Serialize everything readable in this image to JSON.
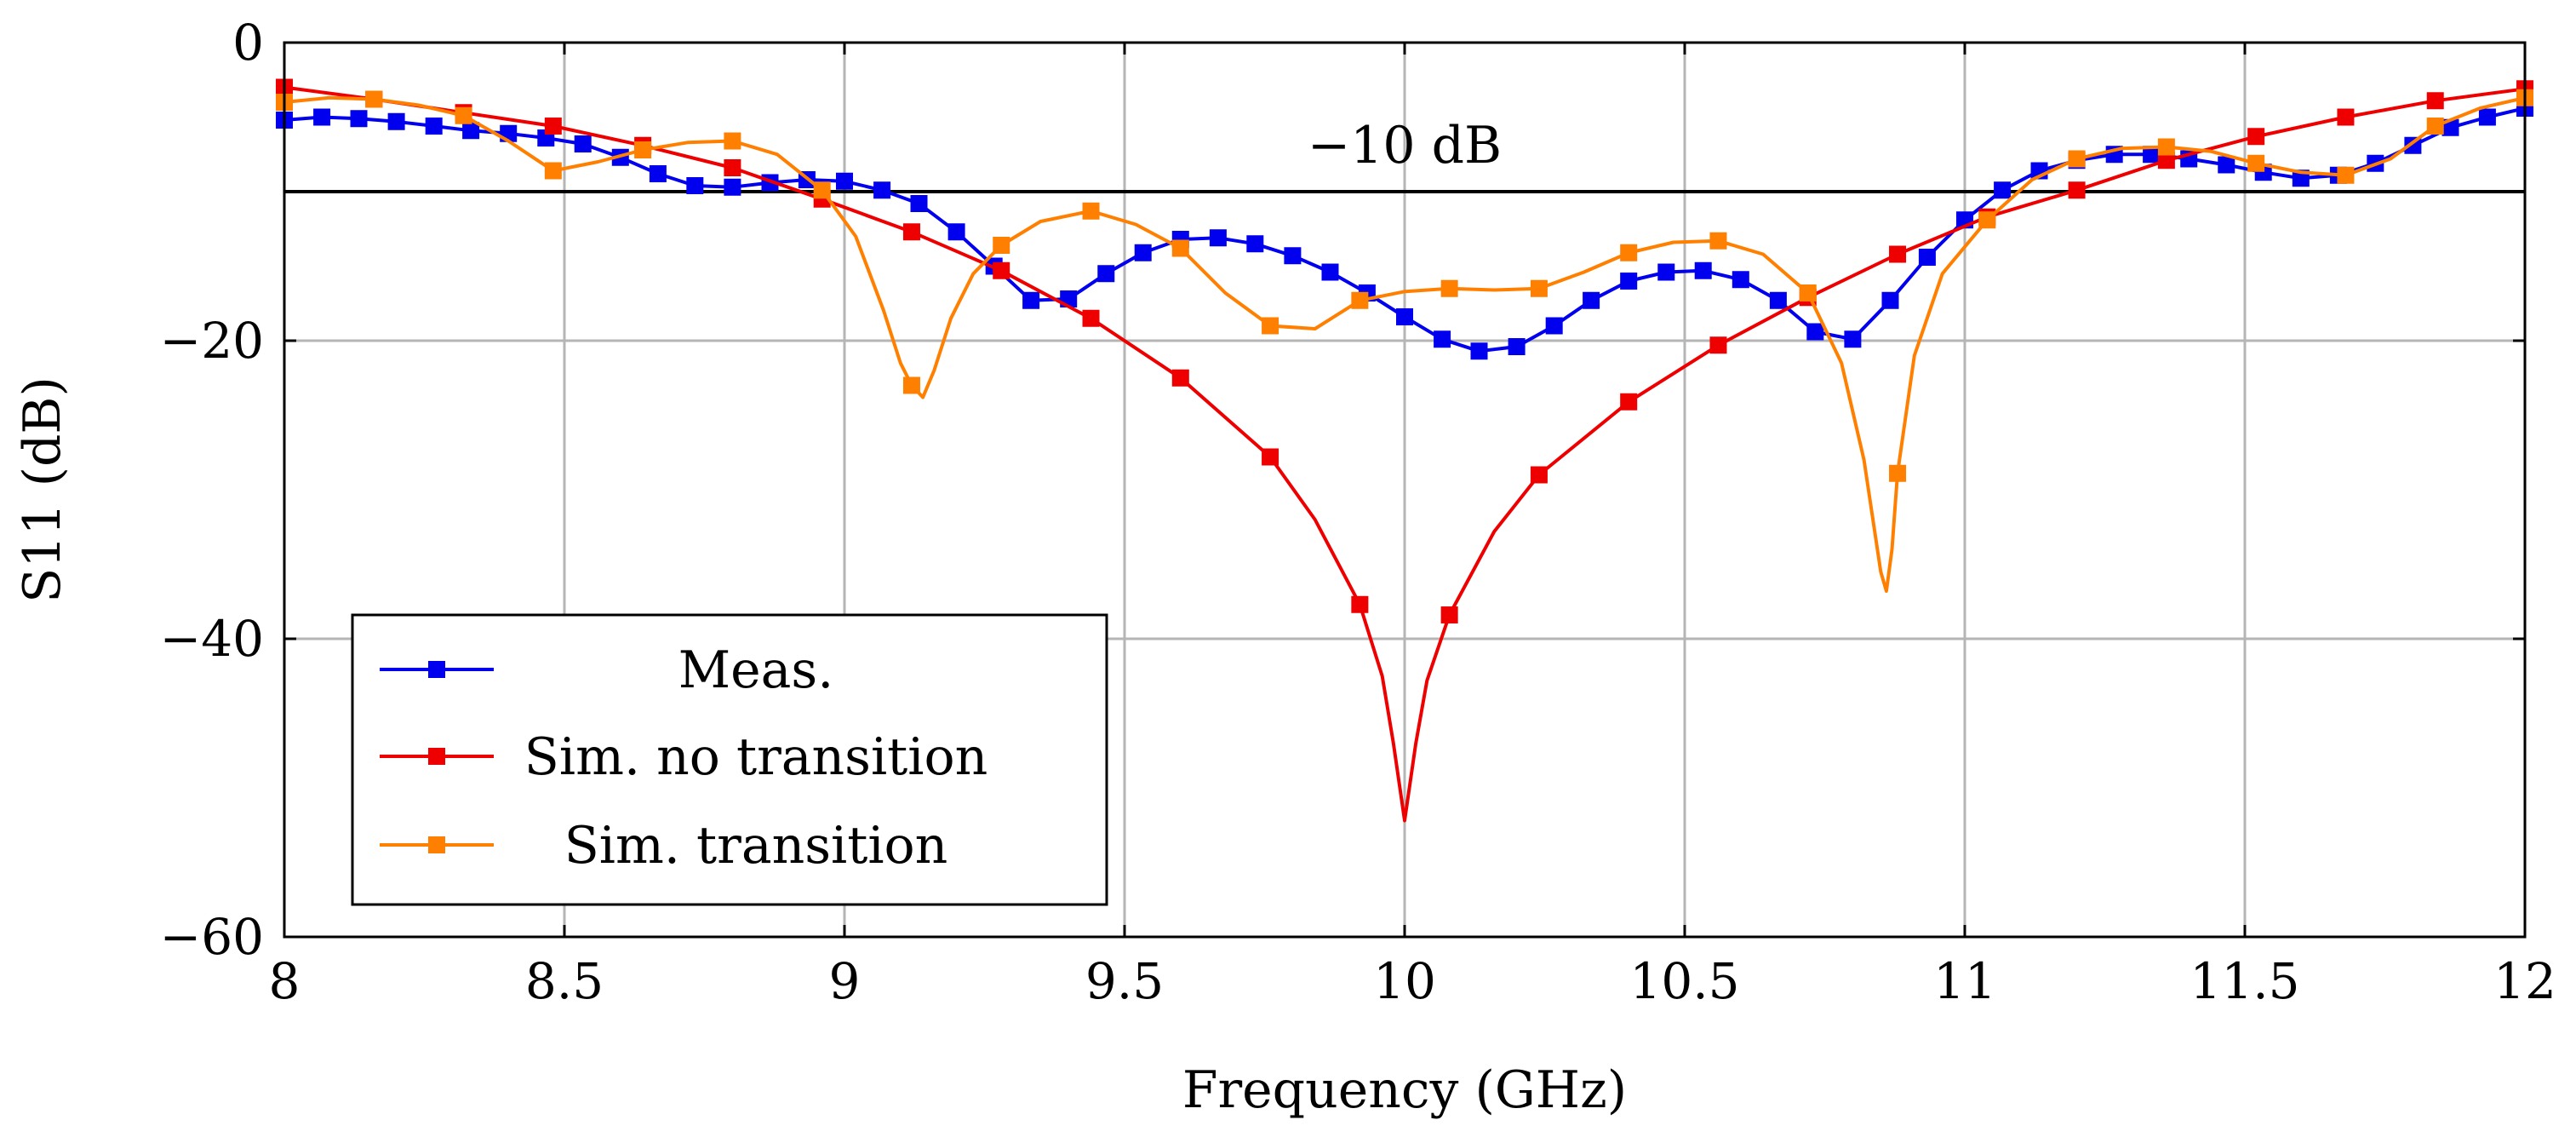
{
  "chart_data": {
    "type": "line",
    "xlabel": "Frequency (GHz)",
    "ylabel": "S11 (dB)",
    "xlim": [
      8,
      12
    ],
    "ylim": [
      -60,
      0
    ],
    "xticks": [
      8,
      8.5,
      9,
      9.5,
      10,
      10.5,
      11,
      11.5,
      12
    ],
    "xtick_labels": [
      "8",
      "8.5",
      "9",
      "9.5",
      "10",
      "10.5",
      "11",
      "11.5",
      "12"
    ],
    "yticks": [
      -60,
      -40,
      -20,
      0
    ],
    "ytick_labels": [
      "−60",
      "−40",
      "−20",
      "0"
    ],
    "grid": true,
    "legend_position": "bottom-left",
    "reference_line": {
      "y": -10,
      "label": "−10 dB"
    },
    "series": [
      {
        "name": "Meas.",
        "color": "#0000ee",
        "x": [
          8.0,
          8.067,
          8.133,
          8.2,
          8.267,
          8.333,
          8.4,
          8.467,
          8.533,
          8.6,
          8.667,
          8.733,
          8.8,
          8.867,
          8.933,
          9.0,
          9.067,
          9.133,
          9.2,
          9.267,
          9.333,
          9.4,
          9.467,
          9.533,
          9.6,
          9.667,
          9.733,
          9.8,
          9.867,
          9.933,
          10.0,
          10.067,
          10.133,
          10.2,
          10.267,
          10.333,
          10.4,
          10.467,
          10.533,
          10.6,
          10.667,
          10.733,
          10.8,
          10.867,
          10.933,
          11.0,
          11.067,
          11.133,
          11.2,
          11.267,
          11.333,
          11.4,
          11.467,
          11.533,
          11.6,
          11.667,
          11.733,
          11.8,
          11.867,
          11.933,
          12.0
        ],
        "y": [
          -5.2,
          -5.0,
          -5.1,
          -5.3,
          -5.6,
          -5.9,
          -6.1,
          -6.4,
          -6.8,
          -7.7,
          -8.8,
          -9.6,
          -9.7,
          -9.4,
          -9.2,
          -9.3,
          -9.9,
          -10.8,
          -12.7,
          -15.0,
          -17.3,
          -17.2,
          -15.5,
          -14.1,
          -13.2,
          -13.1,
          -13.5,
          -14.3,
          -15.4,
          -16.8,
          -18.4,
          -19.9,
          -20.7,
          -20.4,
          -19.0,
          -17.3,
          -16.0,
          -15.4,
          -15.3,
          -15.9,
          -17.3,
          -19.4,
          -19.9,
          -17.3,
          -14.4,
          -11.9,
          -9.9,
          -8.6,
          -7.9,
          -7.5,
          -7.5,
          -7.8,
          -8.2,
          -8.7,
          -9.1,
          -8.9,
          -8.1,
          -6.9,
          -5.7,
          -5.0,
          -4.4
        ]
      },
      {
        "name": "Sim. no transition",
        "color": "#ee0000",
        "x": [
          8.0,
          8.16,
          8.32,
          8.48,
          8.64,
          8.8,
          8.96,
          9.12,
          9.28,
          9.44,
          9.6,
          9.76,
          9.92,
          10.08,
          10.24,
          10.4,
          10.56,
          10.72,
          10.88,
          11.04,
          11.2,
          11.36,
          11.52,
          11.68,
          11.84,
          12.0
        ],
        "y": [
          -3.0,
          -3.8,
          -4.7,
          -5.6,
          -6.9,
          -8.4,
          -10.5,
          -12.7,
          -15.3,
          -18.5,
          -22.5,
          -27.8,
          -37.7,
          -38.4,
          -29.0,
          -24.1,
          -20.3,
          -17.1,
          -14.2,
          -11.7,
          -9.9,
          -7.9,
          -6.3,
          -5.0,
          -3.9,
          -3.1
        ],
        "line_x": [
          8.0,
          8.16,
          8.32,
          8.48,
          8.64,
          8.8,
          8.96,
          9.12,
          9.28,
          9.44,
          9.6,
          9.76,
          9.84,
          9.92,
          9.96,
          9.98,
          10.0,
          10.02,
          10.04,
          10.08,
          10.16,
          10.24,
          10.4,
          10.56,
          10.72,
          10.88,
          11.04,
          11.2,
          11.36,
          11.52,
          11.68,
          11.84,
          12.0
        ],
        "line_y": [
          -3.0,
          -3.8,
          -4.7,
          -5.6,
          -6.9,
          -8.4,
          -10.5,
          -12.7,
          -15.3,
          -18.5,
          -22.5,
          -27.8,
          -32.0,
          -37.7,
          -42.5,
          -47.0,
          -52.2,
          -47.0,
          -42.8,
          -38.4,
          -32.8,
          -29.0,
          -24.1,
          -20.3,
          -17.1,
          -14.2,
          -11.7,
          -9.9,
          -7.9,
          -6.3,
          -5.0,
          -3.9,
          -3.1
        ]
      },
      {
        "name": "Sim. transition",
        "color": "#ff8000",
        "x": [
          8.0,
          8.16,
          8.32,
          8.48,
          8.64,
          8.8,
          8.96,
          9.12,
          9.28,
          9.44,
          9.6,
          9.76,
          9.92,
          10.08,
          10.24,
          10.4,
          10.56,
          10.72,
          10.88,
          11.04,
          11.2,
          11.36,
          11.52,
          11.68,
          11.84,
          12.0
        ],
        "y": [
          -4.0,
          -3.8,
          -4.9,
          -8.6,
          -7.2,
          -6.6,
          -9.9,
          -23.0,
          -13.6,
          -11.3,
          -13.8,
          -19.0,
          -17.3,
          -16.5,
          -16.5,
          -14.1,
          -13.3,
          -16.8,
          -28.9,
          -11.9,
          -7.8,
          -7.0,
          -8.1,
          -8.9,
          -5.6,
          -3.7
        ],
        "line_x": [
          8.0,
          8.08,
          8.16,
          8.24,
          8.32,
          8.4,
          8.48,
          8.56,
          8.64,
          8.72,
          8.8,
          8.88,
          8.96,
          9.02,
          9.07,
          9.1,
          9.12,
          9.14,
          9.16,
          9.19,
          9.23,
          9.28,
          9.35,
          9.44,
          9.52,
          9.6,
          9.68,
          9.76,
          9.84,
          9.92,
          10.0,
          10.08,
          10.16,
          10.24,
          10.32,
          10.4,
          10.48,
          10.56,
          10.64,
          10.72,
          10.78,
          10.82,
          10.85,
          10.86,
          10.87,
          10.88,
          10.91,
          10.96,
          11.04,
          11.12,
          11.2,
          11.28,
          11.36,
          11.44,
          11.52,
          11.6,
          11.68,
          11.76,
          11.84,
          11.92,
          12.0
        ],
        "line_y": [
          -4.0,
          -3.7,
          -3.8,
          -4.2,
          -4.9,
          -6.6,
          -8.6,
          -8.0,
          -7.2,
          -6.7,
          -6.6,
          -7.5,
          -9.9,
          -13.0,
          -18.0,
          -21.5,
          -23.0,
          -23.8,
          -22.0,
          -18.5,
          -15.5,
          -13.6,
          -12.0,
          -11.3,
          -12.2,
          -13.8,
          -16.8,
          -19.0,
          -19.2,
          -17.3,
          -16.7,
          -16.5,
          -16.6,
          -16.5,
          -15.4,
          -14.1,
          -13.4,
          -13.3,
          -14.2,
          -16.8,
          -21.5,
          -28.0,
          -35.5,
          -36.8,
          -34.0,
          -28.9,
          -21.0,
          -15.5,
          -11.9,
          -9.2,
          -7.8,
          -7.1,
          -7.0,
          -7.3,
          -8.1,
          -8.7,
          -8.9,
          -7.8,
          -5.6,
          -4.4,
          -3.7
        ]
      }
    ]
  }
}
